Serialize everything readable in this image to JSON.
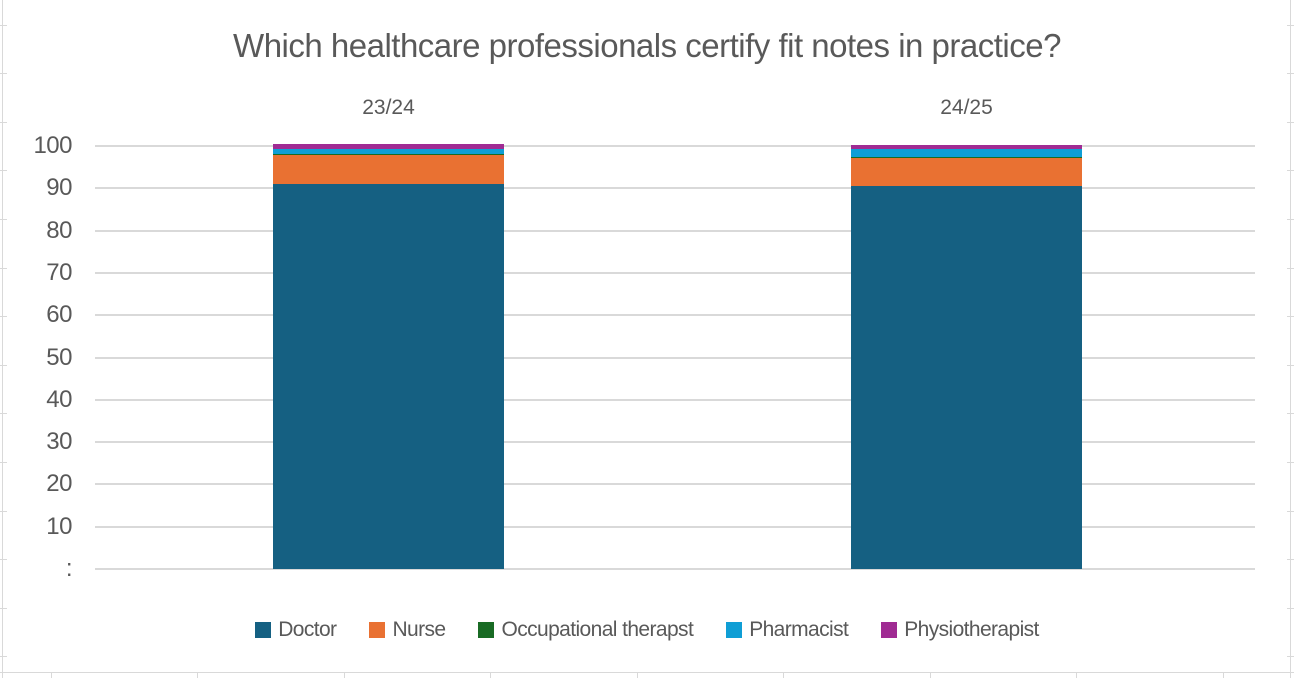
{
  "chart_data": {
    "type": "bar",
    "stacked": true,
    "title": "Which healthcare professionals certify fit notes in practice?",
    "categories": [
      "23/24",
      "24/25"
    ],
    "series": [
      {
        "name": "Doctor",
        "color": "#156082",
        "values": [
          91.0,
          90.5
        ]
      },
      {
        "name": "Nurse",
        "color": "#E97132",
        "values": [
          7.0,
          6.9
        ]
      },
      {
        "name": "Occupational therapst",
        "color": "#196B24",
        "values": [
          0.1,
          0.1
        ]
      },
      {
        "name": "Pharmacist",
        "color": "#0F9ED5",
        "values": [
          1.2,
          1.7
        ]
      },
      {
        "name": "Physiotherapist",
        "color": "#A02B93",
        "values": [
          1.1,
          1.0
        ]
      }
    ],
    "ylim": [
      0,
      100
    ],
    "ytick_step": 10,
    "ytick_labels_top_to_bottom": [
      "100",
      "90",
      "80",
      "70",
      "60",
      "50",
      "40",
      "30",
      "20",
      "10",
      ":"
    ],
    "grid": true,
    "legend_position": "bottom"
  },
  "styles": {
    "text_color": "#595959",
    "gridline_color": "#D9D9D9",
    "sheet_gridline_color": "#D9D9D9",
    "background": "#FFFFFF"
  }
}
